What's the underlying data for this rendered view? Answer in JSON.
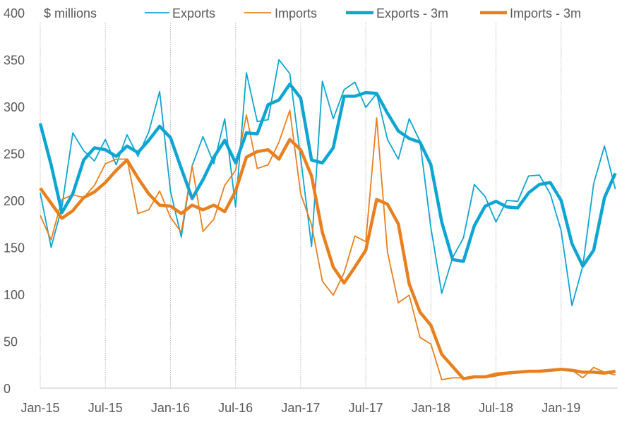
{
  "chart_data": {
    "type": "line",
    "title": "",
    "ylabel": "$ millions",
    "xlabel": "",
    "ylim": [
      0,
      400
    ],
    "yticks": [
      0,
      50,
      100,
      150,
      200,
      250,
      300,
      350,
      400
    ],
    "xtick_labels": [
      "Jan-15",
      "Jul-15",
      "Jan-16",
      "Jul-16",
      "Jan-17",
      "Jul-17",
      "Jan-18",
      "Jul-18",
      "Jan-19"
    ],
    "x_start": "Jan-15",
    "x_end": "Jun-19",
    "grid": "vertical dotted at tick labels",
    "legend": "top",
    "series": [
      {
        "name": "Exports",
        "color": "#0ea5d3",
        "style": "thin",
        "values": [
          208,
          150,
          193,
          272,
          253,
          242,
          265,
          238,
          270,
          247,
          273,
          316,
          210,
          161,
          237,
          268,
          239,
          287,
          193,
          336,
          284,
          286,
          350,
          335,
          245,
          151,
          327,
          287,
          318,
          326,
          299,
          314,
          265,
          244,
          287,
          263,
          171,
          101,
          139,
          160,
          217,
          204,
          177,
          200,
          199,
          226,
          227,
          207,
          168,
          88,
          130,
          218,
          258,
          212
        ]
      },
      {
        "name": "Imports",
        "color": "#e8801f",
        "style": "thin",
        "values": [
          184,
          158,
          201,
          206,
          203,
          216,
          239,
          244,
          244,
          186,
          190,
          210,
          182,
          166,
          237,
          167,
          180,
          216,
          232,
          291,
          234,
          238,
          262,
          296,
          207,
          174,
          114,
          99,
          123,
          162,
          156,
          288,
          145,
          91,
          99,
          54,
          47,
          9,
          11,
          11,
          12,
          13,
          16,
          17,
          18,
          18,
          19,
          19,
          20,
          19,
          11,
          22,
          17,
          14
        ]
      },
      {
        "name": "Exports - 3m",
        "color": "#0ea5d3",
        "style": "thick",
        "values": [
          282,
          238,
          187,
          207,
          243,
          256,
          254,
          247,
          258,
          251,
          264,
          279,
          267,
          234,
          202,
          222,
          246,
          264,
          240,
          272,
          271,
          302,
          307,
          324,
          309,
          243,
          240,
          256,
          311,
          311,
          315,
          314,
          293,
          274,
          266,
          262,
          238,
          177,
          137,
          135,
          173,
          194,
          199,
          193,
          192,
          208,
          217,
          219,
          200,
          154,
          130,
          147,
          203,
          229
        ]
      },
      {
        "name": "Imports - 3m",
        "color": "#e8801f",
        "style": "thick",
        "values": [
          213,
          197,
          181,
          189,
          203,
          209,
          219,
          232,
          243,
          224,
          207,
          195,
          194,
          186,
          195,
          190,
          195,
          188,
          210,
          246,
          252,
          254,
          244,
          265,
          254,
          226,
          166,
          129,
          112,
          129,
          147,
          201,
          196,
          175,
          111,
          81,
          67,
          36,
          23,
          10,
          12,
          12,
          14,
          16,
          17,
          18,
          18,
          19,
          20,
          19,
          17,
          17,
          16,
          18
        ]
      }
    ]
  }
}
